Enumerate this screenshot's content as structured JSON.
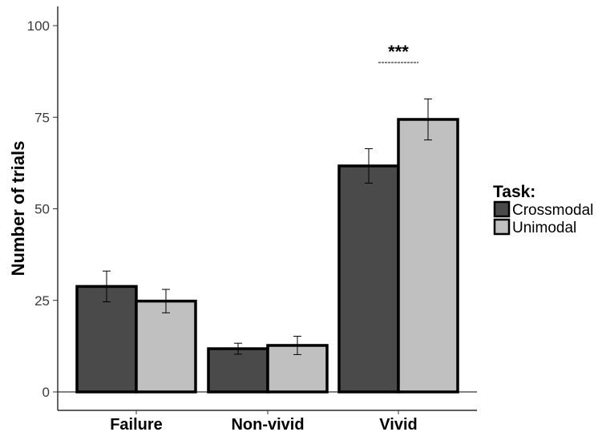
{
  "chart_data": {
    "type": "bar",
    "categories": [
      "Failure",
      "Non-vivid",
      "Vivid"
    ],
    "series": [
      {
        "name": "Crossmodal",
        "color": "#4a4a4a",
        "values": [
          28.8,
          11.8,
          61.7
        ],
        "error": [
          4.2,
          1.5,
          4.7
        ]
      },
      {
        "name": "Unimodal",
        "color": "#c0c0c0",
        "values": [
          24.8,
          12.7,
          74.4
        ],
        "error": [
          3.2,
          2.5,
          5.6
        ]
      }
    ],
    "xlabel": "",
    "ylabel": "Number of trials",
    "ylim": [
      0,
      105
    ],
    "yticks": [
      0,
      25,
      50,
      75,
      100
    ],
    "grid": false,
    "legend": {
      "title": "Task:",
      "placement": "right"
    },
    "annotations": [
      {
        "category": "Vivid",
        "text": "***"
      }
    ]
  }
}
